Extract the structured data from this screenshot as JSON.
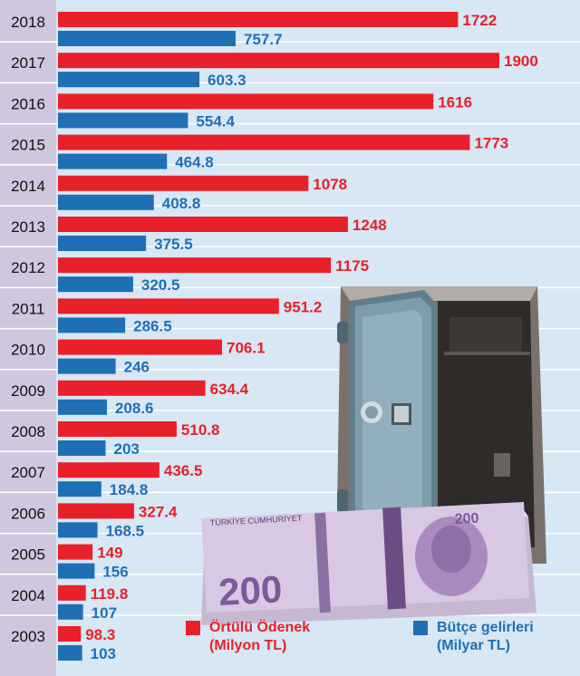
{
  "chart_data": {
    "type": "bar",
    "orientation": "horizontal",
    "categories": [
      "2018",
      "2017",
      "2016",
      "2015",
      "2014",
      "2013",
      "2012",
      "2011",
      "2010",
      "2009",
      "2008",
      "2007",
      "2006",
      "2005",
      "2004",
      "2003"
    ],
    "series": [
      {
        "name": "Örtülü Ödenek",
        "unit": "(Milyon TL)",
        "color": "#e8202a",
        "labels": [
          "1722",
          "1900",
          "1616",
          "1773",
          "1078",
          "1248",
          "1175",
          "951.2",
          "706.1",
          "634.4",
          "510.8",
          "436.5",
          "327.4",
          "149",
          "119.8",
          "98.3"
        ],
        "values": [
          1722,
          1900,
          1616,
          1773,
          1078,
          1248,
          1175,
          951.2,
          706.1,
          634.4,
          510.8,
          436.5,
          327.4,
          149,
          119.8,
          98.3
        ]
      },
      {
        "name": "Bütçe gelirleri",
        "unit": "(Milyar TL)",
        "color": "#1f6fb5",
        "labels": [
          "757.7",
          "603.3",
          "554.4",
          "464.8",
          "408.8",
          "375.5",
          "320.5",
          "286.5",
          "246",
          "208.6",
          "203",
          "184.8",
          "168.5",
          "156",
          "107",
          "103"
        ],
        "values": [
          757.7,
          603.3,
          554.4,
          464.8,
          408.8,
          375.5,
          320.5,
          286.5,
          246,
          208.6,
          203,
          184.8,
          168.5,
          156,
          107,
          103
        ]
      }
    ],
    "legend_position": "bottom-right"
  },
  "colors": {
    "axis_strip": "#cfc7dd",
    "plot_background": "#d7e7f3"
  },
  "illustration": {
    "safe_icon": "safe-icon",
    "banknote_icon": "banknote-stack-icon",
    "banknote_text": "TÜRKİYE CUMHURİYET",
    "banknote_denomination": "200"
  }
}
